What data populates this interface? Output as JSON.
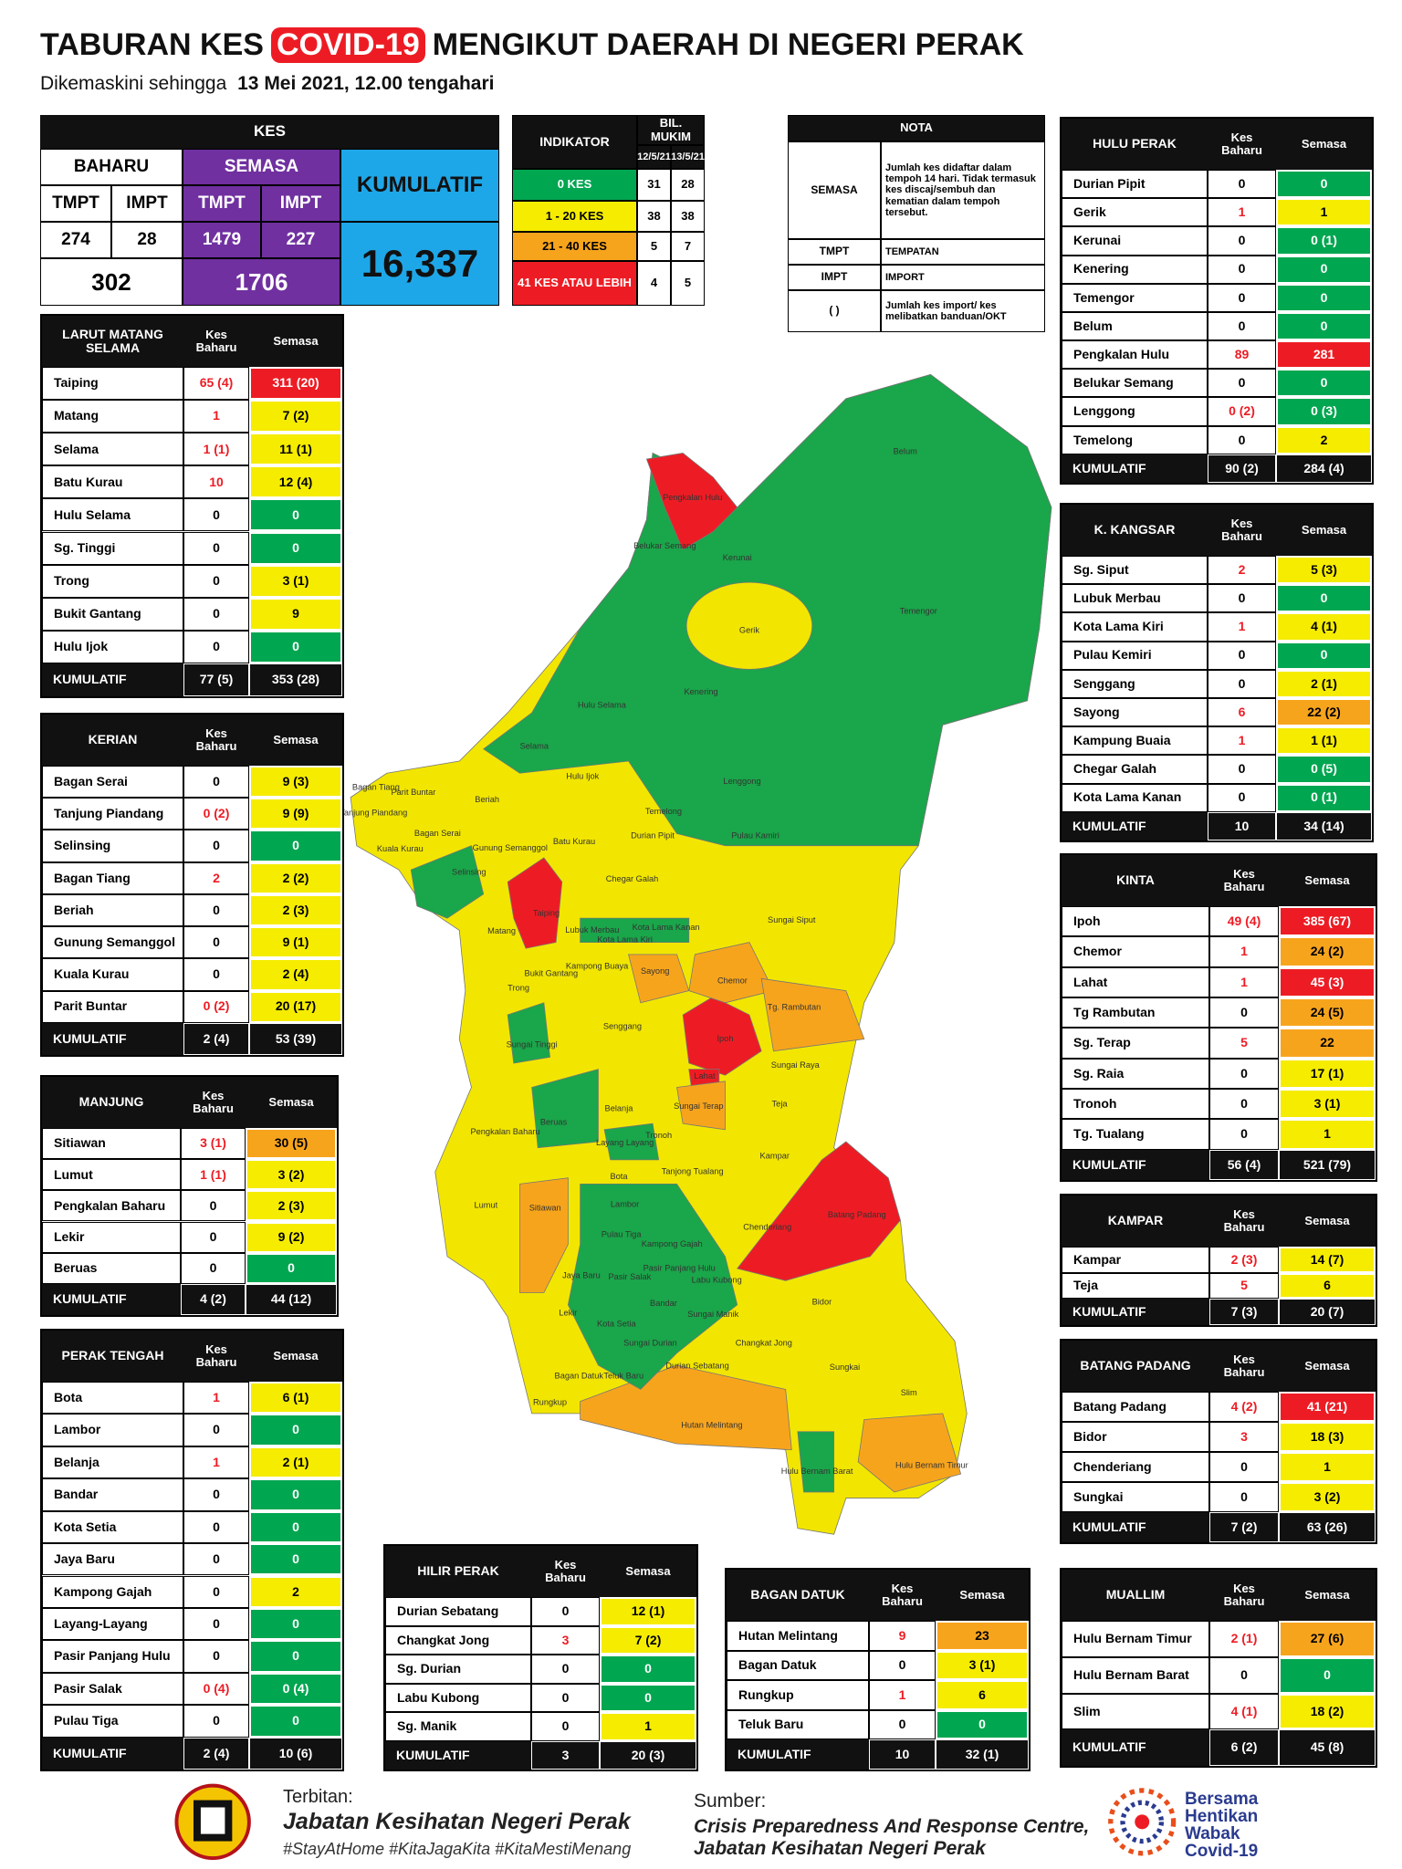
{
  "header": {
    "title_pre": "TABURAN KES",
    "title_covid": "COVID-19",
    "title_post": "MENGIKUT DAERAH DI NEGERI PERAK",
    "subtitle": "Dikemaskini sehingga",
    "subtitle_date": "13 Mei 2021, 12.00 tengahari"
  },
  "kes": {
    "heading": "KES",
    "baharu": "BAHARU",
    "semasa": "SEMASA",
    "kumulatif_label": "KUMULATIF",
    "baharu_tmpt_label": "TMPT",
    "baharu_impt_label": "IMPT",
    "semasa_tmpt_label": "TMPT",
    "semasa_impt_label": "IMPT",
    "baharu_tmpt": 274,
    "baharu_impt": 28,
    "semasa_tmpt": 1479,
    "semasa_impt": 227,
    "baharu_total": 302,
    "semasa_total": 1706,
    "kumulatif": "16,337"
  },
  "indicator": {
    "header": "INDIKATOR",
    "mukim": "BIL. MUKIM",
    "dates": [
      "12/5/21",
      "13/5/21"
    ],
    "rows": [
      [
        "0 KES",
        31,
        28
      ],
      [
        "1 - 20 KES",
        38,
        38
      ],
      [
        "21 - 40 KES",
        5,
        7
      ],
      [
        "41 KES ATAU LEBIH",
        4,
        5
      ]
    ]
  },
  "nota": {
    "title": "NOTA",
    "rows": [
      [
        "SEMASA",
        "Jumlah kes didaftar dalam tempoh 14 hari. Tidak termasuk kes discaj/sembuh dan kematian dalam tempoh tersebut."
      ],
      [
        "TMPT",
        "TEMPATAN"
      ],
      [
        "IMPT",
        "IMPORT"
      ],
      [
        "( )",
        "Jumlah kes import/ kes melibatkan banduan/OKT"
      ]
    ]
  },
  "districts": [
    {
      "title": "HULU PERAK",
      "col_baharu": "Kes Baharu",
      "col_semasa": "Semasa",
      "rows": [
        [
          "Durian Pipit",
          0,
          0
        ],
        [
          "Gerik",
          1,
          1
        ],
        [
          "Kerunai",
          0,
          "0 (1)"
        ],
        [
          "Kenering",
          0,
          0
        ],
        [
          "Temengor",
          0,
          0
        ],
        [
          "Belum",
          0,
          0
        ],
        [
          "Pengkalan Hulu",
          89,
          281
        ],
        [
          "Belukar Semang",
          0,
          0
        ],
        [
          "Lenggong",
          "0 (2)",
          "0 (3)"
        ],
        [
          "Temelong",
          0,
          2
        ]
      ],
      "total": [
        "KUMULATIF",
        "90 (2)",
        "284 (4)"
      ]
    },
    {
      "title": "LARUT MATANG SELAMA",
      "col_baharu": "Kes Baharu",
      "col_semasa": "Semasa",
      "rows": [
        [
          "Taiping",
          "65 (4)",
          "311 (20)"
        ],
        [
          "Matang",
          1,
          "7 (2)"
        ],
        [
          "Selama",
          "1 (1)",
          "11 (1)"
        ],
        [
          "Batu Kurau",
          10,
          "12 (4)"
        ],
        [
          "Hulu Selama",
          0,
          0
        ],
        [
          "Sg. Tinggi",
          0,
          0
        ],
        [
          "Trong",
          0,
          "3 (1)"
        ],
        [
          "Bukit Gantang",
          0,
          9
        ],
        [
          "Hulu Ijok",
          0,
          0
        ]
      ],
      "total": [
        "KUMULATIF",
        "77 (5)",
        "353 (28)"
      ]
    },
    {
      "title": "KERIAN",
      "col_baharu": "Kes Baharu",
      "col_semasa": "Semasa",
      "rows": [
        [
          "Bagan Serai",
          0,
          "9 (3)"
        ],
        [
          "Tanjung Piandang",
          "0 (2)",
          "9 (9)"
        ],
        [
          "Selinsing",
          0,
          0
        ],
        [
          "Bagan Tiang",
          2,
          "2 (2)"
        ],
        [
          "Beriah",
          0,
          "2 (3)"
        ],
        [
          "Gunung Semanggol",
          0,
          "9 (1)"
        ],
        [
          "Kuala Kurau",
          0,
          "2 (4)"
        ],
        [
          "Parit Buntar",
          "0 (2)",
          "20 (17)"
        ]
      ],
      "total": [
        "KUMULATIF",
        "2 (4)",
        "53 (39)"
      ]
    },
    {
      "title": "MANJUNG",
      "col_baharu": "Kes Baharu",
      "col_semasa": "Semasa",
      "rows": [
        [
          "Sitiawan",
          "3 (1)",
          "30 (5)"
        ],
        [
          "Lumut",
          "1 (1)",
          "3 (2)"
        ],
        [
          "Pengkalan Baharu",
          0,
          "2 (3)"
        ],
        [
          "Lekir",
          0,
          "9 (2)"
        ],
        [
          "Beruas",
          0,
          0
        ]
      ],
      "total": [
        "KUMULATIF",
        "4 (2)",
        "44 (12)"
      ]
    },
    {
      "title": "PERAK TENGAH",
      "col_baharu": "Kes Baharu",
      "col_semasa": "Semasa",
      "rows": [
        [
          "Bota",
          1,
          "6 (1)"
        ],
        [
          "Lambor",
          0,
          0
        ],
        [
          "Belanja",
          1,
          "2 (1)"
        ],
        [
          "Bandar",
          0,
          0
        ],
        [
          "Kota Setia",
          0,
          0
        ],
        [
          "Jaya Baru",
          0,
          0
        ],
        [
          "Kampong Gajah",
          0,
          2
        ],
        [
          "Layang-Layang",
          0,
          0
        ],
        [
          "Pasir Panjang Hulu",
          0,
          0
        ],
        [
          "Pasir Salak",
          "0 (4)",
          "0 (4)"
        ],
        [
          "Pulau Tiga",
          0,
          0
        ]
      ],
      "total": [
        "KUMULATIF",
        "2 (4)",
        "10 (6)"
      ]
    },
    {
      "title": "K. KANGSAR",
      "col_baharu": "Kes Baharu",
      "col_semasa": "Semasa",
      "rows": [
        [
          "Sg. Siput",
          2,
          "5 (3)"
        ],
        [
          "Lubuk Merbau",
          0,
          0
        ],
        [
          "Kota Lama Kiri",
          1,
          "4 (1)"
        ],
        [
          "Pulau Kemiri",
          0,
          0
        ],
        [
          "Senggang",
          0,
          "2 (1)"
        ],
        [
          "Sayong",
          6,
          "22 (2)"
        ],
        [
          "Kampung Buaia",
          1,
          "1 (1)"
        ],
        [
          "Chegar Galah",
          0,
          "0 (5)"
        ],
        [
          "Kota Lama Kanan",
          0,
          "0 (1)"
        ]
      ],
      "total": [
        "KUMULATIF",
        10,
        "34 (14)"
      ]
    },
    {
      "title": "KINTA",
      "col_baharu": "Kes Baharu",
      "col_semasa": "Semasa",
      "rows": [
        [
          "Ipoh",
          "49 (4)",
          "385 (67)"
        ],
        [
          "Chemor",
          1,
          "24 (2)"
        ],
        [
          "Lahat",
          1,
          "45 (3)"
        ],
        [
          "Tg Rambutan",
          0,
          "24 (5)"
        ],
        [
          "Sg. Terap",
          5,
          22
        ],
        [
          "Sg. Raia",
          0,
          "17 (1)"
        ],
        [
          "Tronoh",
          0,
          "3 (1)"
        ],
        [
          "Tg. Tualang",
          0,
          1
        ]
      ],
      "total": [
        "KUMULATIF",
        "56 (4)",
        "521 (79)"
      ]
    },
    {
      "title": "KAMPAR",
      "col_baharu": "Kes Baharu",
      "col_semasa": "Semasa",
      "rows": [
        [
          "Kampar",
          "2 (3)",
          "14 (7)"
        ],
        [
          "Teja",
          5,
          6
        ]
      ],
      "total": [
        "KUMULATIF",
        "7 (3)",
        "20 (7)"
      ]
    },
    {
      "title": "BATANG PADANG",
      "col_baharu": "Kes Baharu",
      "col_semasa": "Semasa",
      "rows": [
        [
          "Batang Padang",
          "4 (2)",
          "41 (21)"
        ],
        [
          "Bidor",
          3,
          "18 (3)"
        ],
        [
          "Chenderiang",
          0,
          1
        ],
        [
          "Sungkai",
          0,
          "3 (2)"
        ]
      ],
      "total": [
        "KUMULATIF",
        "7 (2)",
        "63 (26)"
      ]
    },
    {
      "title": "MUALLIM",
      "col_baharu": "Kes Baharu",
      "col_semasa": "Semasa",
      "rows": [
        [
          "Hulu Bernam Timur",
          "2 (1)",
          "27 (6)"
        ],
        [
          "Hulu Bernam Barat",
          0,
          0
        ],
        [
          "Slim",
          "4 (1)",
          "18 (2)"
        ]
      ],
      "total": [
        "KUMULATIF",
        "6 (2)",
        "45 (8)"
      ]
    },
    {
      "title": "HILIR PERAK",
      "col_baharu": "Kes Baharu",
      "col_semasa": "Semasa",
      "rows": [
        [
          "Durian Sebatang",
          0,
          "12 (1)"
        ],
        [
          "Changkat Jong",
          3,
          "7 (2)"
        ],
        [
          "Sg. Durian",
          0,
          0
        ],
        [
          "Labu Kubong",
          0,
          0
        ],
        [
          "Sg. Manik",
          0,
          1
        ]
      ],
      "total": [
        "KUMULATIF",
        3,
        "20 (3)"
      ]
    },
    {
      "title": "BAGAN DATUK",
      "col_baharu": "Kes Baharu",
      "col_semasa": "Semasa",
      "rows": [
        [
          "Hutan Melintang",
          9,
          23
        ],
        [
          "Bagan Datuk",
          0,
          "3 (1)"
        ],
        [
          "Rungkup",
          1,
          6
        ],
        [
          "Teluk Baru",
          0,
          0
        ]
      ],
      "total": [
        "KUMULATIF",
        10,
        "32 (1)"
      ]
    }
  ],
  "map_labels": [
    "Belum",
    "Pengkalan Hulu",
    "Belukar Semang",
    "Kerunai",
    "Temengor",
    "Gerik",
    "Kenering",
    "Hulu Selama",
    "Selama",
    "Hulu Ijok",
    "Lenggong",
    "Parit Buntar",
    "Bagan Tiang",
    "Tanjung Piandang",
    "Beriah",
    "Temelong",
    "Bagan Serai",
    "Kuala Kurau",
    "Gunung Semanggol",
    "Batu Kurau",
    "Durian Pipit",
    "Pulau Kamiri",
    "Chegar Galah",
    "Selinsing",
    "Taiping",
    "Sungai Siput",
    "Lubuk Merbau",
    "Kota Lama Kiri",
    "Kota Lama Kanan",
    "Matang",
    "Kampong Buaya",
    "Bukit Gantang",
    "Sayong",
    "Chemor",
    "Tg. Rambutan",
    "Trong",
    "Senggang",
    "Sungai Tinggi",
    "Ipoh",
    "Sungai Raya",
    "Lahat",
    "Teja",
    "Sungai Terap",
    "Pengkalan Baharu",
    "Beruas",
    "Belanja",
    "Layang Layang",
    "Tronoh",
    "Kampar",
    "Tanjong Tualang",
    "Bota",
    "Lumut",
    "Sitiawan",
    "Lambor",
    "Batang Padang",
    "Chenderiang",
    "Pulau Tiga",
    "Kampong Gajah",
    "Pasir Panjang Hulu",
    "Jaya Baru",
    "Pasir Salak",
    "Labu Kubong",
    "Bidor",
    "Bandar",
    "Lekir",
    "Kota Setia",
    "Sungai Manik",
    "Changkat Jong",
    "Sungai Durian",
    "Sungkai",
    "Bagan Datuk",
    "Teluk Baru",
    "Durian Sebatang",
    "Slim",
    "Rungkup",
    "Hutan Melintang",
    "Hulu Bernam Barat",
    "Hulu Bernam Timur"
  ],
  "footer": {
    "terbitan": "Terbitan:",
    "publisher": "Jabatan Kesihatan Negeri Perak",
    "hashtags": "#StayAtHome #KitaJagaKita #KitaMestiMenang",
    "sumber": "Sumber:",
    "source": [
      "Crisis Preparedness And Response Centre,",
      "Jabatan Kesihatan Negeri Perak"
    ],
    "logo_text": [
      "Bersama",
      "Hentikan",
      "Wabak",
      "Covid-19"
    ]
  }
}
